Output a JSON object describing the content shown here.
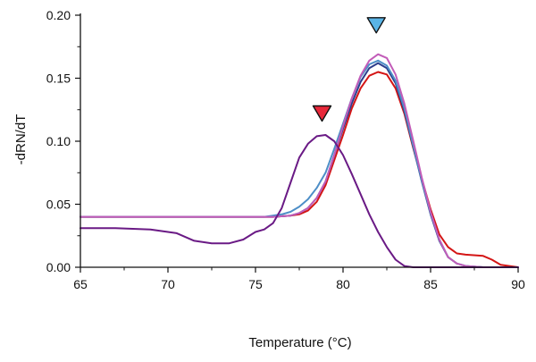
{
  "chart_data": {
    "type": "line",
    "title": "",
    "xlabel": "Temperature (°C)",
    "ylabel": "-dRN/dT",
    "xlim": [
      65,
      90
    ],
    "ylim": [
      0,
      0.2
    ],
    "x_ticks": [
      65,
      70,
      75,
      80,
      85,
      90
    ],
    "x_tick_labels": [
      "65",
      "70",
      "75",
      "80",
      "85",
      "90"
    ],
    "y_ticks": [
      0,
      0.05,
      0.1,
      0.15,
      0.2
    ],
    "y_tick_labels": [
      "0.00",
      "0.05",
      "0.10",
      "0.15",
      "0.20"
    ],
    "grid": false,
    "legend": "none",
    "markers": [
      {
        "type": "triangle-down",
        "x": 78.8,
        "y": 0.122,
        "color": "#e8283a"
      },
      {
        "type": "triangle-down",
        "x": 81.9,
        "y": 0.192,
        "color": "#5ab4e6"
      }
    ],
    "series": [
      {
        "color": "#d41515",
        "points": [
          [
            65,
            0.04
          ],
          [
            70,
            0.04
          ],
          [
            74,
            0.04
          ],
          [
            76,
            0.04
          ],
          [
            77,
            0.041
          ],
          [
            77.5,
            0.042
          ],
          [
            78,
            0.045
          ],
          [
            78.5,
            0.052
          ],
          [
            79,
            0.065
          ],
          [
            79.5,
            0.085
          ],
          [
            80,
            0.105
          ],
          [
            80.5,
            0.126
          ],
          [
            81,
            0.142
          ],
          [
            81.5,
            0.152
          ],
          [
            82,
            0.155
          ],
          [
            82.5,
            0.153
          ],
          [
            83,
            0.142
          ],
          [
            83.5,
            0.122
          ],
          [
            84,
            0.095
          ],
          [
            84.5,
            0.07
          ],
          [
            85,
            0.046
          ],
          [
            85.5,
            0.026
          ],
          [
            86,
            0.016
          ],
          [
            86.5,
            0.011
          ],
          [
            87,
            0.01
          ],
          [
            88,
            0.009
          ],
          [
            88.5,
            0.006
          ],
          [
            89,
            0.002
          ],
          [
            90,
            0.0
          ]
        ]
      },
      {
        "color": "#2d3e8c",
        "points": [
          [
            65,
            0.04
          ],
          [
            70,
            0.04
          ],
          [
            74,
            0.04
          ],
          [
            76,
            0.04
          ],
          [
            77,
            0.041
          ],
          [
            77.5,
            0.043
          ],
          [
            78,
            0.047
          ],
          [
            78.5,
            0.055
          ],
          [
            79,
            0.068
          ],
          [
            79.5,
            0.089
          ],
          [
            80,
            0.11
          ],
          [
            80.5,
            0.13
          ],
          [
            81,
            0.147
          ],
          [
            81.5,
            0.158
          ],
          [
            82,
            0.162
          ],
          [
            82.5,
            0.158
          ],
          [
            83,
            0.146
          ],
          [
            83.5,
            0.124
          ],
          [
            84,
            0.096
          ],
          [
            84.5,
            0.068
          ],
          [
            85,
            0.042
          ],
          [
            85.5,
            0.021
          ],
          [
            86,
            0.008
          ],
          [
            86.5,
            0.003
          ],
          [
            87,
            0.001
          ],
          [
            88,
            0.0
          ],
          [
            90,
            0.0
          ]
        ]
      },
      {
        "color": "#4d8ec7",
        "points": [
          [
            65,
            0.04
          ],
          [
            70,
            0.04
          ],
          [
            74,
            0.04
          ],
          [
            75.5,
            0.04
          ],
          [
            76,
            0.041
          ],
          [
            76.5,
            0.042
          ],
          [
            77,
            0.044
          ],
          [
            77.5,
            0.048
          ],
          [
            78,
            0.054
          ],
          [
            78.5,
            0.063
          ],
          [
            79,
            0.075
          ],
          [
            79.5,
            0.094
          ],
          [
            80,
            0.114
          ],
          [
            80.5,
            0.134
          ],
          [
            81,
            0.151
          ],
          [
            81.5,
            0.161
          ],
          [
            82,
            0.164
          ],
          [
            82.5,
            0.16
          ],
          [
            83,
            0.148
          ],
          [
            83.5,
            0.126
          ],
          [
            84,
            0.097
          ],
          [
            84.5,
            0.069
          ],
          [
            85,
            0.043
          ],
          [
            85.5,
            0.022
          ],
          [
            86,
            0.008
          ],
          [
            86.5,
            0.003
          ],
          [
            87,
            0.001
          ],
          [
            88,
            0.0
          ],
          [
            90,
            0.0
          ]
        ]
      },
      {
        "color": "#c25cb8",
        "points": [
          [
            65,
            0.04
          ],
          [
            70,
            0.04
          ],
          [
            74,
            0.04
          ],
          [
            76,
            0.04
          ],
          [
            77,
            0.041
          ],
          [
            77.5,
            0.043
          ],
          [
            78,
            0.047
          ],
          [
            78.5,
            0.055
          ],
          [
            79,
            0.068
          ],
          [
            79.5,
            0.089
          ],
          [
            80,
            0.112
          ],
          [
            80.5,
            0.134
          ],
          [
            81,
            0.152
          ],
          [
            81.5,
            0.164
          ],
          [
            82,
            0.169
          ],
          [
            82.5,
            0.166
          ],
          [
            83,
            0.153
          ],
          [
            83.5,
            0.13
          ],
          [
            84,
            0.101
          ],
          [
            84.5,
            0.071
          ],
          [
            85,
            0.044
          ],
          [
            85.5,
            0.022
          ],
          [
            86,
            0.008
          ],
          [
            86.5,
            0.003
          ],
          [
            87,
            0.001
          ],
          [
            88,
            0.0
          ],
          [
            90,
            0.0
          ]
        ]
      },
      {
        "color": "#6a1a85",
        "points": [
          [
            65,
            0.031
          ],
          [
            67,
            0.031
          ],
          [
            69,
            0.03
          ],
          [
            70.5,
            0.027
          ],
          [
            71.5,
            0.021
          ],
          [
            72.5,
            0.019
          ],
          [
            73.5,
            0.019
          ],
          [
            74.3,
            0.022
          ],
          [
            75,
            0.028
          ],
          [
            75.5,
            0.03
          ],
          [
            76,
            0.035
          ],
          [
            76.5,
            0.047
          ],
          [
            77,
            0.067
          ],
          [
            77.5,
            0.087
          ],
          [
            78,
            0.098
          ],
          [
            78.5,
            0.104
          ],
          [
            79,
            0.105
          ],
          [
            79.5,
            0.1
          ],
          [
            80,
            0.089
          ],
          [
            80.5,
            0.074
          ],
          [
            81,
            0.058
          ],
          [
            81.5,
            0.042
          ],
          [
            82,
            0.028
          ],
          [
            82.5,
            0.016
          ],
          [
            83,
            0.006
          ],
          [
            83.5,
            0.001
          ],
          [
            84,
            0.0
          ],
          [
            90,
            0.0
          ]
        ]
      }
    ]
  }
}
